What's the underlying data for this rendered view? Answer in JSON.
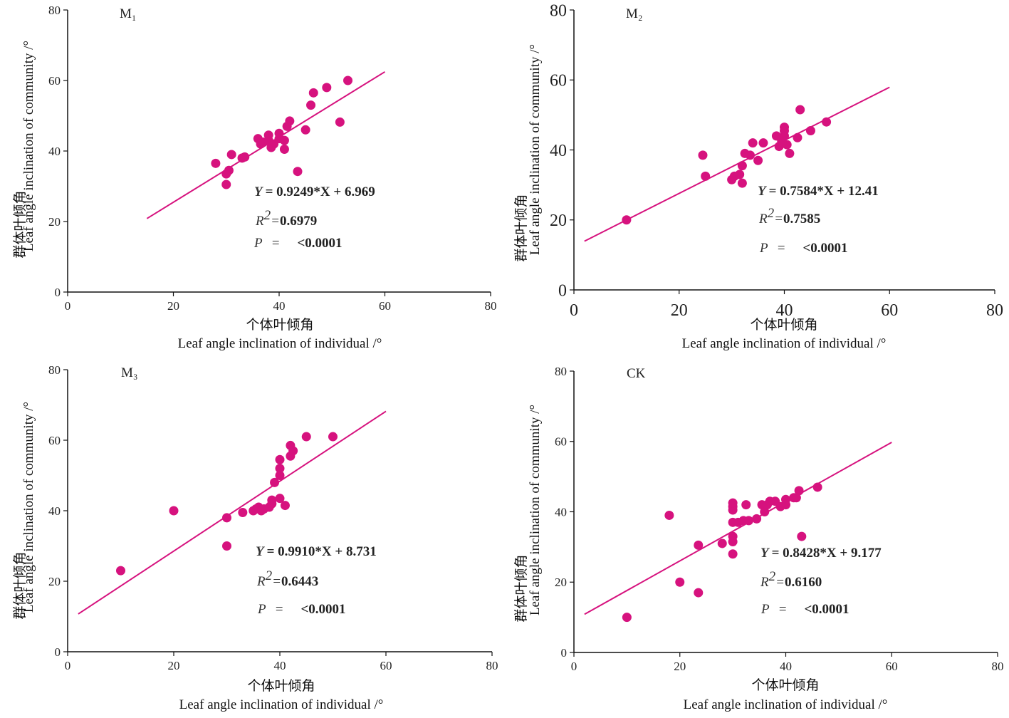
{
  "accent": "#d6127e",
  "chart_data": [
    {
      "type": "scatter",
      "label": "M₁",
      "xlabel_cn": "个体叶倾角",
      "xlabel": "Leaf angle inclination of individual /°",
      "ylabel_cn": "群体叶倾角",
      "ylabel": "Leaf angle inclination of community /°",
      "xlim": [
        0,
        80
      ],
      "ylim": [
        0,
        80
      ],
      "ticks": [
        "0",
        "20",
        "40",
        "60",
        "80"
      ],
      "points": [
        [
          28,
          36.5
        ],
        [
          30,
          30.5
        ],
        [
          30,
          33.5
        ],
        [
          30.5,
          34.5
        ],
        [
          31,
          39
        ],
        [
          33,
          38
        ],
        [
          33.5,
          38.3
        ],
        [
          36,
          43.5
        ],
        [
          36.5,
          42
        ],
        [
          37,
          42.5
        ],
        [
          38,
          43
        ],
        [
          38,
          44.5
        ],
        [
          38.5,
          41
        ],
        [
          39,
          42
        ],
        [
          40,
          43.5
        ],
        [
          40,
          45
        ],
        [
          41,
          43
        ],
        [
          41,
          40.5
        ],
        [
          41.5,
          47
        ],
        [
          42,
          48.5
        ],
        [
          43.5,
          34.2
        ],
        [
          45,
          46
        ],
        [
          46,
          53
        ],
        [
          46.5,
          56.5
        ],
        [
          49,
          58
        ],
        [
          51.5,
          48.2
        ],
        [
          53,
          60
        ]
      ],
      "fit": {
        "slope": 0.9249,
        "intercept": 6.969,
        "x_range": [
          15,
          60
        ]
      },
      "equation": "= 0.9249*X + 6.969",
      "r2": "0.6979",
      "p": "<0.0001",
      "y_label": "Y",
      "r_label": "R",
      "sup": "2",
      "r_eq": "=",
      "p_label": "P",
      "p_eq": "="
    },
    {
      "type": "scatter",
      "label": "M₂",
      "xlabel_cn": "个体叶倾角",
      "xlabel": "Leaf angle inclination of individual /°",
      "ylabel_cn": "群体叶倾角",
      "ylabel": "Leaf angle inclination of community /°",
      "xlim": [
        0,
        80
      ],
      "ylim": [
        0,
        80
      ],
      "ticks": [
        "0",
        "20",
        "40",
        "60",
        "80"
      ],
      "points": [
        [
          10,
          20
        ],
        [
          24.5,
          38.5
        ],
        [
          25,
          32.5
        ],
        [
          30,
          31.5
        ],
        [
          30.5,
          32.5
        ],
        [
          31.5,
          33
        ],
        [
          32,
          30.5
        ],
        [
          32,
          35.5
        ],
        [
          32.5,
          39
        ],
        [
          33.5,
          38.5
        ],
        [
          34,
          42
        ],
        [
          35,
          37
        ],
        [
          36,
          42
        ],
        [
          38.5,
          44
        ],
        [
          39,
          41
        ],
        [
          39.5,
          42.5
        ],
        [
          40,
          46.5
        ],
        [
          40,
          44
        ],
        [
          40,
          45.5
        ],
        [
          40.5,
          41.5
        ],
        [
          41,
          39
        ],
        [
          42.5,
          43.5
        ],
        [
          43,
          51.5
        ],
        [
          45,
          45.5
        ],
        [
          48,
          48
        ]
      ],
      "fit": {
        "slope": 0.7584,
        "intercept": 12.41,
        "x_range": [
          2,
          60
        ]
      },
      "equation": "= 0.7584*X + 12.41",
      "r2": "0.7585",
      "p": "<0.0001",
      "y_label": "Y",
      "r_label": "R",
      "sup": "2",
      "r_eq": "=",
      "p_label": "P",
      "p_eq": "="
    },
    {
      "type": "scatter",
      "label": "M₃",
      "xlabel_cn": "个体叶倾角",
      "xlabel": "Leaf angle inclination of individual /°",
      "ylabel_cn": "群体叶倾角",
      "ylabel": "Leaf angle inclination of community /°",
      "xlim": [
        0,
        80
      ],
      "ylim": [
        0,
        80
      ],
      "ticks": [
        "0",
        "20",
        "40",
        "60",
        "80"
      ],
      "points": [
        [
          10,
          23
        ],
        [
          20,
          40
        ],
        [
          30,
          30
        ],
        [
          30,
          38
        ],
        [
          33,
          39.5
        ],
        [
          35,
          40
        ],
        [
          35.5,
          40.5
        ],
        [
          36,
          41
        ],
        [
          36.5,
          40
        ],
        [
          37,
          40.5
        ],
        [
          38,
          41
        ],
        [
          38.5,
          42
        ],
        [
          38.5,
          43
        ],
        [
          39,
          48
        ],
        [
          40,
          43.5
        ],
        [
          40,
          50
        ],
        [
          40,
          52
        ],
        [
          40,
          54.5
        ],
        [
          41,
          41.5
        ],
        [
          42,
          55.5
        ],
        [
          42,
          58.5
        ],
        [
          42.5,
          57
        ],
        [
          45,
          61
        ],
        [
          50,
          61
        ]
      ],
      "fit": {
        "slope": 0.991,
        "intercept": 8.731,
        "x_range": [
          2,
          60
        ]
      },
      "equation": "= 0.9910*X + 8.731",
      "r2": "0.6443",
      "p": "<0.0001",
      "y_label": "Y",
      "r_label": "R",
      "sup": "2",
      "r_eq": "=",
      "p_label": "P",
      "p_eq": "="
    },
    {
      "type": "scatter",
      "label": "CK",
      "xlabel_cn": "个体叶倾角",
      "xlabel": "Leaf angle inclination of individual /°",
      "ylabel_cn": "群体叶倾角",
      "ylabel": "Leaf angle inclination of community /°",
      "xlim": [
        0,
        80
      ],
      "ylim": [
        0,
        80
      ],
      "ticks": [
        "0",
        "20",
        "40",
        "60",
        "80"
      ],
      "points": [
        [
          10,
          10
        ],
        [
          18,
          39
        ],
        [
          20,
          20
        ],
        [
          23.5,
          17
        ],
        [
          23.5,
          30.5
        ],
        [
          28,
          31
        ],
        [
          30,
          28
        ],
        [
          30,
          31.5
        ],
        [
          30,
          33
        ],
        [
          30,
          37
        ],
        [
          30,
          40.5
        ],
        [
          30,
          41.5
        ],
        [
          30,
          42.5
        ],
        [
          31,
          37
        ],
        [
          32,
          37.5
        ],
        [
          32.5,
          42
        ],
        [
          33,
          37.5
        ],
        [
          34.5,
          38
        ],
        [
          35.5,
          42
        ],
        [
          36,
          40
        ],
        [
          36.5,
          42
        ],
        [
          37,
          43
        ],
        [
          38,
          43
        ],
        [
          39,
          41.5
        ],
        [
          40,
          42
        ],
        [
          40,
          43.5
        ],
        [
          41.5,
          44
        ],
        [
          42,
          44
        ],
        [
          42.5,
          46
        ],
        [
          43,
          33
        ],
        [
          46,
          47
        ]
      ],
      "fit": {
        "slope": 0.8428,
        "intercept": 9.177,
        "x_range": [
          2,
          60
        ]
      },
      "equation": "= 0.8428*X + 9.177",
      "r2": "0.6160",
      "p": "<0.0001",
      "y_label": "Y",
      "r_label": "R",
      "sup": "2",
      "r_eq": "=",
      "p_label": "P",
      "p_eq": "="
    }
  ]
}
